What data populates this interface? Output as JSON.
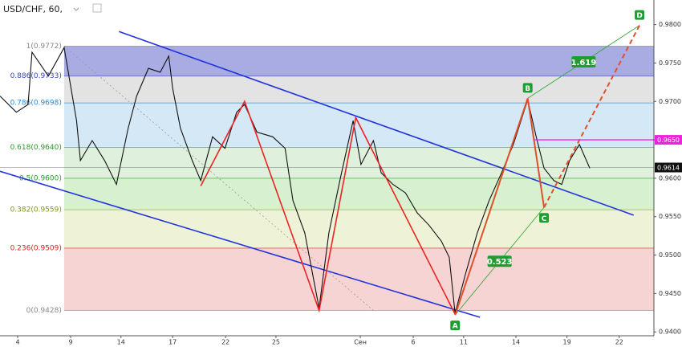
{
  "chart_data": {
    "type": "line",
    "title": "USD/CHF, 60,",
    "color": "#111111",
    "xlim": [
      0,
      100
    ],
    "ylim": [
      0.9395,
      0.9832
    ],
    "yticks": [
      {
        "value": 0.94,
        "label": "0.9400"
      },
      {
        "value": 0.945,
        "label": "0.9450"
      },
      {
        "value": 0.95,
        "label": "0.9500"
      },
      {
        "value": 0.955,
        "label": "0.9550"
      },
      {
        "value": 0.96,
        "label": "0.9600"
      },
      {
        "value": 0.965,
        "label": "0.9650"
      },
      {
        "value": 0.97,
        "label": "0.9700"
      },
      {
        "value": 0.975,
        "label": "0.9750"
      },
      {
        "value": 0.98,
        "label": "0.9800"
      }
    ],
    "xticks": [
      {
        "value": 2.7,
        "label": "4"
      },
      {
        "value": 10.8,
        "label": "9"
      },
      {
        "value": 18.5,
        "label": "14"
      },
      {
        "value": 26.4,
        "label": "17"
      },
      {
        "value": 34.5,
        "label": "22"
      },
      {
        "value": 42.2,
        "label": "25"
      },
      {
        "value": 55.1,
        "label": "Сен"
      },
      {
        "value": 63.2,
        "label": "6"
      },
      {
        "value": 70.9,
        "label": "11"
      },
      {
        "value": 78.9,
        "label": "14"
      },
      {
        "value": 86.7,
        "label": "19"
      },
      {
        "value": 94.7,
        "label": "22"
      }
    ],
    "x": [
      0,
      2.5,
      4.3,
      4.9,
      7.4,
      9.8,
      11.7,
      12.3,
      14.1,
      16,
      17.8,
      19.6,
      20.9,
      22.7,
      24.5,
      25.8,
      26.4,
      27.6,
      29.4,
      30.7,
      32.5,
      34.4,
      36.2,
      37.4,
      39.3,
      41.7,
      43.6,
      44.8,
      46.6,
      48.8,
      50.3,
      52.1,
      54,
      55.2,
      57.1,
      58.3,
      60.1,
      62,
      63.8,
      65.6,
      67.5,
      68.7,
      69.6,
      71.2,
      73,
      74.8,
      76.7,
      78.5,
      80.7,
      82,
      83.2,
      84.7,
      85.9,
      87.1,
      88.6,
      90.2
    ],
    "values": [
      0.9707,
      0.9686,
      0.9696,
      0.9764,
      0.9733,
      0.977,
      0.9675,
      0.9623,
      0.9649,
      0.9623,
      0.9592,
      0.9665,
      0.9707,
      0.9743,
      0.9738,
      0.9759,
      0.9717,
      0.9665,
      0.9623,
      0.9597,
      0.9654,
      0.9639,
      0.9686,
      0.9696,
      0.966,
      0.9654,
      0.9639,
      0.9571,
      0.9529,
      0.9431,
      0.9529,
      0.9602,
      0.9675,
      0.9618,
      0.9649,
      0.9607,
      0.9592,
      0.9581,
      0.9555,
      0.9539,
      0.9518,
      0.9497,
      0.9424,
      0.9476,
      0.9529,
      0.9571,
      0.9607,
      0.9644,
      0.9702,
      0.9654,
      0.9613,
      0.9597,
      0.9592,
      0.9623,
      0.9644,
      0.9613
    ],
    "last_price": 0.9614,
    "fib_levels": [
      {
        "label": "1(0.9772)",
        "value": 0.9772,
        "color": "#888888",
        "band": "#a9abe3"
      },
      {
        "label": "0.886(0.9733)",
        "value": 0.9733,
        "color": "#3344bb",
        "band": "#e3e3e3"
      },
      {
        "label": "0.786(0.9698)",
        "value": 0.9698,
        "color": "#2f86c8",
        "band": "#d4e8f6"
      },
      {
        "label": "0.618(0.9640)",
        "value": 0.964,
        "color": "#2a9a2a",
        "band": "#dff0dc"
      },
      {
        "label": "0.5(0.9600)",
        "value": 0.96,
        "color": "#2a9a2a",
        "band": "#d7f0d0"
      },
      {
        "label": "0.382(0.9559)",
        "value": 0.9559,
        "color": "#7a9a10",
        "band": "#eef3d8"
      },
      {
        "label": "0.236(0.9509)",
        "value": 0.9509,
        "color": "#d02020",
        "band": "#f6d4d4"
      },
      {
        "label": "0(0.9428)",
        "value": 0.9428,
        "color": "#888888",
        "band": null
      }
    ],
    "fib_start_x": 9.8,
    "trendlines": [
      {
        "points": [
          [
            18.2,
            0.9791
          ],
          [
            96.9,
            0.9552
          ]
        ],
        "color": "#2233dd",
        "dash": false
      },
      {
        "points": [
          [
            0,
            0.9609
          ],
          [
            73.4,
            0.9419
          ]
        ],
        "color": "#2233dd",
        "dash": false
      },
      {
        "points": [
          [
            9.8,
            0.9772
          ],
          [
            57.1,
            0.9428
          ]
        ],
        "color": "#999999",
        "dash": true
      }
    ],
    "zigzag": {
      "color": "#ee2222",
      "x": [
        30.7,
        37.4,
        48.8,
        54.4,
        69.6
      ],
      "y": [
        0.959,
        0.97,
        0.9428,
        0.9679,
        0.9423
      ]
    },
    "pattern": {
      "names": [
        "A",
        "B",
        "C",
        "D"
      ],
      "x": [
        69.6,
        80.7,
        83.2,
        97.8
      ],
      "y": [
        0.9422,
        0.9704,
        0.9562,
        0.9799
      ],
      "color": "#e0502a",
      "ratio_color": "#3aa83a",
      "ratio_labels": [
        "0.523",
        "1.619"
      ]
    },
    "marker_level": {
      "value": 0.965,
      "label": "0.9650",
      "start_x": 81.6,
      "color": "#ee22dd"
    }
  }
}
